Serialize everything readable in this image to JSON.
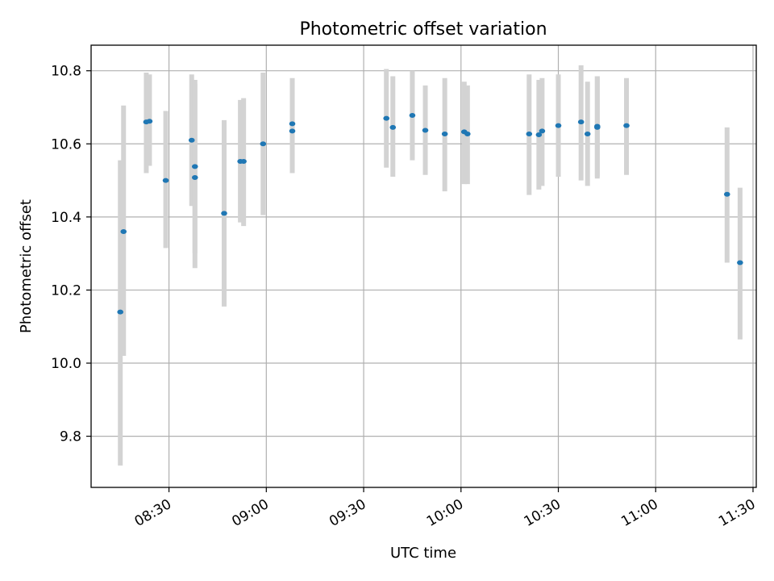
{
  "chart_data": {
    "type": "scatter",
    "title": "Photometric offset variation",
    "xlabel": "UTC time",
    "ylabel": "Photometric offset",
    "x_tick_labels": [
      "08:30",
      "09:00",
      "09:30",
      "10:00",
      "10:30",
      "11:00",
      "11:30"
    ],
    "y_ticks": [
      9.8,
      10.0,
      10.2,
      10.4,
      10.6,
      10.8
    ],
    "y_tick_labels": [
      "9.8",
      "10.0",
      "10.2",
      "10.4",
      "10.6",
      "10.8"
    ],
    "xlim": [
      "08:06",
      "11:31"
    ],
    "ylim": [
      9.66,
      10.87
    ],
    "grid": true,
    "colors": {
      "point": "#1f77b4",
      "errorbar": "#d3d3d3"
    },
    "series": [
      {
        "x": [
          "08:15",
          "08:16",
          "08:23",
          "08:24",
          "08:29",
          "08:37",
          "08:38",
          "08:38",
          "08:47",
          "08:52",
          "08:53",
          "08:59",
          "09:08",
          "09:08",
          "09:37",
          "09:39",
          "09:45",
          "09:49",
          "09:55",
          "10:01",
          "10:02",
          "10:21",
          "10:24",
          "10:25",
          "10:30",
          "10:37",
          "10:39",
          "10:42",
          "10:42",
          "10:51",
          "11:22",
          "11:26"
        ],
        "y": [
          10.14,
          10.36,
          10.66,
          10.662,
          10.5,
          10.61,
          10.508,
          10.538,
          10.41,
          10.552,
          10.552,
          10.6,
          10.635,
          10.655,
          10.67,
          10.645,
          10.678,
          10.637,
          10.627,
          10.633,
          10.627,
          10.627,
          10.625,
          10.635,
          10.65,
          10.66,
          10.627,
          10.648,
          10.645,
          10.65,
          10.462,
          10.275
        ],
        "yerr_low": [
          9.72,
          10.02,
          10.52,
          10.54,
          10.315,
          10.43,
          10.26,
          10.3,
          10.155,
          10.385,
          10.375,
          10.405,
          10.52,
          10.53,
          10.535,
          10.51,
          10.555,
          10.515,
          10.47,
          10.49,
          10.49,
          10.46,
          10.475,
          10.485,
          10.51,
          10.5,
          10.485,
          10.51,
          10.505,
          10.515,
          10.275,
          10.065
        ],
        "yerr_high": [
          10.555,
          10.705,
          10.795,
          10.79,
          10.69,
          10.79,
          10.765,
          10.775,
          10.665,
          10.72,
          10.725,
          10.795,
          10.75,
          10.78,
          10.805,
          10.785,
          10.8,
          10.76,
          10.78,
          10.77,
          10.76,
          10.79,
          10.775,
          10.78,
          10.79,
          10.815,
          10.77,
          10.785,
          10.785,
          10.78,
          10.645,
          10.48
        ]
      }
    ]
  }
}
